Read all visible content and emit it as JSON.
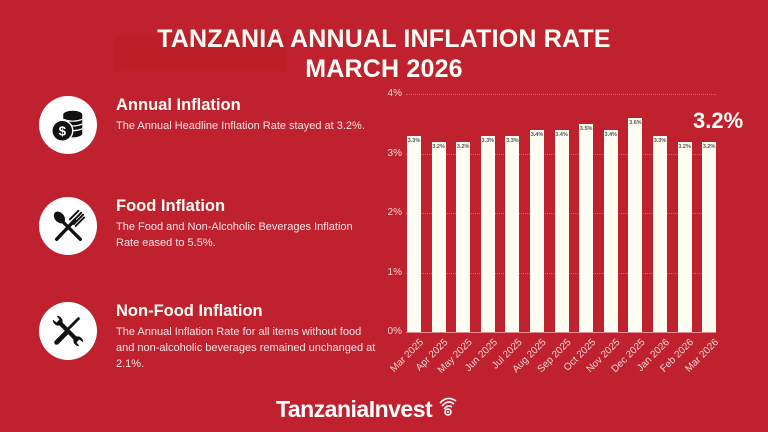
{
  "title": {
    "line1": "TANZANIA ANNUAL INFLATION RATE",
    "line2": "MARCH 2026"
  },
  "info_blocks": [
    {
      "icon": "coins-dollar-icon",
      "heading": "Annual Inflation",
      "text": "The Annual Headline Inflation Rate stayed at 3.2%."
    },
    {
      "icon": "fork-spoon-icon",
      "heading": "Food Inflation",
      "text": "The Food and Non-Alcoholic Beverages Inflation Rate eased to 5.5%."
    },
    {
      "icon": "wrench-screwdriver-icon",
      "heading": "Non-Food Inflation",
      "text": "The Annual Inflation Rate for all items without food and non-alcoholic beverages remained unchanged at 2.1%."
    }
  ],
  "highlight_value": "3.2%",
  "logo": {
    "text": "TanzaniaInvest"
  },
  "colors": {
    "background": "#BF222E",
    "bar": "#FFFDF2",
    "text": "#FFFDF6"
  },
  "chart_data": {
    "type": "bar",
    "title": "Tanzania Annual Inflation Rate March 2026",
    "xlabel": "",
    "ylabel": "",
    "categories": [
      "Mar 2025",
      "Apr 2025",
      "May 2025",
      "Jun 2025",
      "Jul 2025",
      "Aug 2025",
      "Sep 2025",
      "Oct 2025",
      "Nov 2025",
      "Dec 2025",
      "Jan 2026",
      "Feb 2026",
      "Mar 2026"
    ],
    "values": [
      3.3,
      3.2,
      3.2,
      3.3,
      3.3,
      3.4,
      3.4,
      3.5,
      3.4,
      3.6,
      3.3,
      3.2,
      3.2
    ],
    "value_labels": [
      "3.3%",
      "3.2%",
      "3.2%",
      "3.3%",
      "3.3%",
      "3.4%",
      "3.4%",
      "3.5%",
      "3.4%",
      "3.6%",
      "3.3%",
      "3.2%",
      "3.2%"
    ],
    "yticks": [
      "0%",
      "1%",
      "2%",
      "3%",
      "4%"
    ],
    "ylim": [
      0,
      4
    ],
    "grid": true,
    "legend": null
  }
}
